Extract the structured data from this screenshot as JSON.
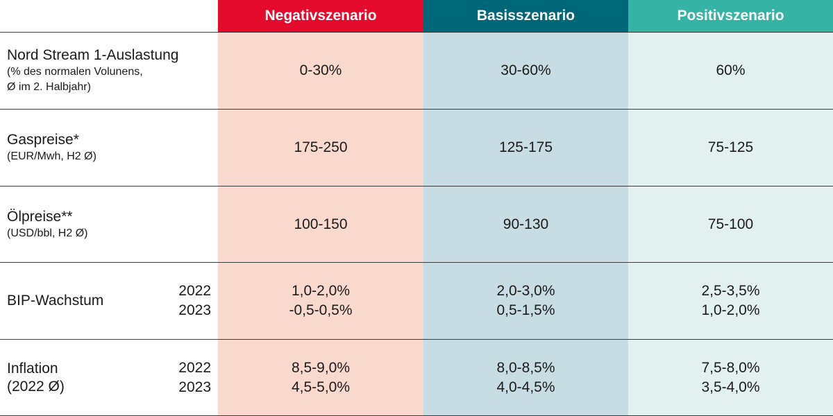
{
  "colors": {
    "neg_header": "#e30a2b",
    "neg_bg": "#f9d9ce",
    "base_header": "#006778",
    "base_bg": "#c8dde3",
    "pos_header": "#35b3a4",
    "pos_bg": "#e2f1ee"
  },
  "chart_data": {
    "type": "table",
    "columns": [
      "Negativszenario",
      "Basisszenario",
      "Positivszenario"
    ],
    "rows": [
      {
        "label": "Nord Stream 1-Auslastung",
        "sub": [
          "(% des normalen Volunens,",
          "Ø im 2. Halbjahr)"
        ],
        "years": [],
        "values": [
          [
            "0-30%"
          ],
          [
            "30-60%"
          ],
          [
            "60%"
          ]
        ]
      },
      {
        "label": "Gaspreise*",
        "sub": [
          "(EUR/Mwh, H2 Ø)"
        ],
        "years": [],
        "values": [
          [
            "175-250"
          ],
          [
            "125-175"
          ],
          [
            "75-125"
          ]
        ]
      },
      {
        "label": "Ölpreise**",
        "sub": [
          "(USD/bbl, H2 Ø)"
        ],
        "years": [],
        "values": [
          [
            "100-150"
          ],
          [
            "90-130"
          ],
          [
            "75-100"
          ]
        ]
      },
      {
        "label": "BIP-Wachstum",
        "sub": [],
        "years": [
          "2022",
          "2023"
        ],
        "values": [
          [
            "1,0-2,0%",
            "-0,5-0,5%"
          ],
          [
            "2,0-3,0%",
            "0,5-1,5%"
          ],
          [
            "2,5-3,5%",
            "1,0-2,0%"
          ]
        ]
      },
      {
        "label": "Inflation",
        "sub": [
          "(2022 Ø)"
        ],
        "years": [
          "2022",
          "2023"
        ],
        "values": [
          [
            "8,5-9,0%",
            "4,5-5,0%"
          ],
          [
            "8,0-8,5%",
            "4,0-4,5%"
          ],
          [
            "7,5-8,0%",
            "3,5-4,0%"
          ]
        ]
      }
    ]
  }
}
